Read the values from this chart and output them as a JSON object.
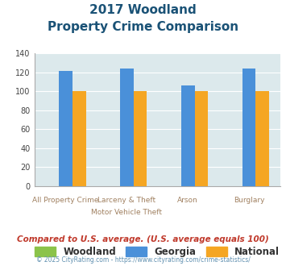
{
  "title_line1": "2017 Woodland",
  "title_line2": "Property Crime Comparison",
  "cat_labels_row1": [
    "",
    "Larceny & Theft",
    "Arson",
    ""
  ],
  "cat_labels_row2": [
    "All Property Crime",
    "Motor Vehicle Theft",
    "",
    "Burglary"
  ],
  "woodland": [
    0,
    0,
    0,
    0
  ],
  "georgia": [
    121,
    124,
    106,
    124
  ],
  "national": [
    100,
    100,
    100,
    100
  ],
  "woodland_color": "#8bc34a",
  "georgia_color": "#4a90d9",
  "national_color": "#f5a623",
  "ylim": [
    0,
    140
  ],
  "yticks": [
    0,
    20,
    40,
    60,
    80,
    100,
    120,
    140
  ],
  "bg_color": "#dce9ec",
  "title_color": "#1a5276",
  "xlabel_color": "#a08060",
  "legend_label_woodland": "Woodland",
  "legend_label_georgia": "Georgia",
  "legend_label_national": "National",
  "footer_text1": "Compared to U.S. average. (U.S. average equals 100)",
  "footer_text2": "© 2025 CityRating.com - https://www.cityrating.com/crime-statistics/",
  "footer_color1": "#c0392b",
  "footer_color2": "#6090b0"
}
